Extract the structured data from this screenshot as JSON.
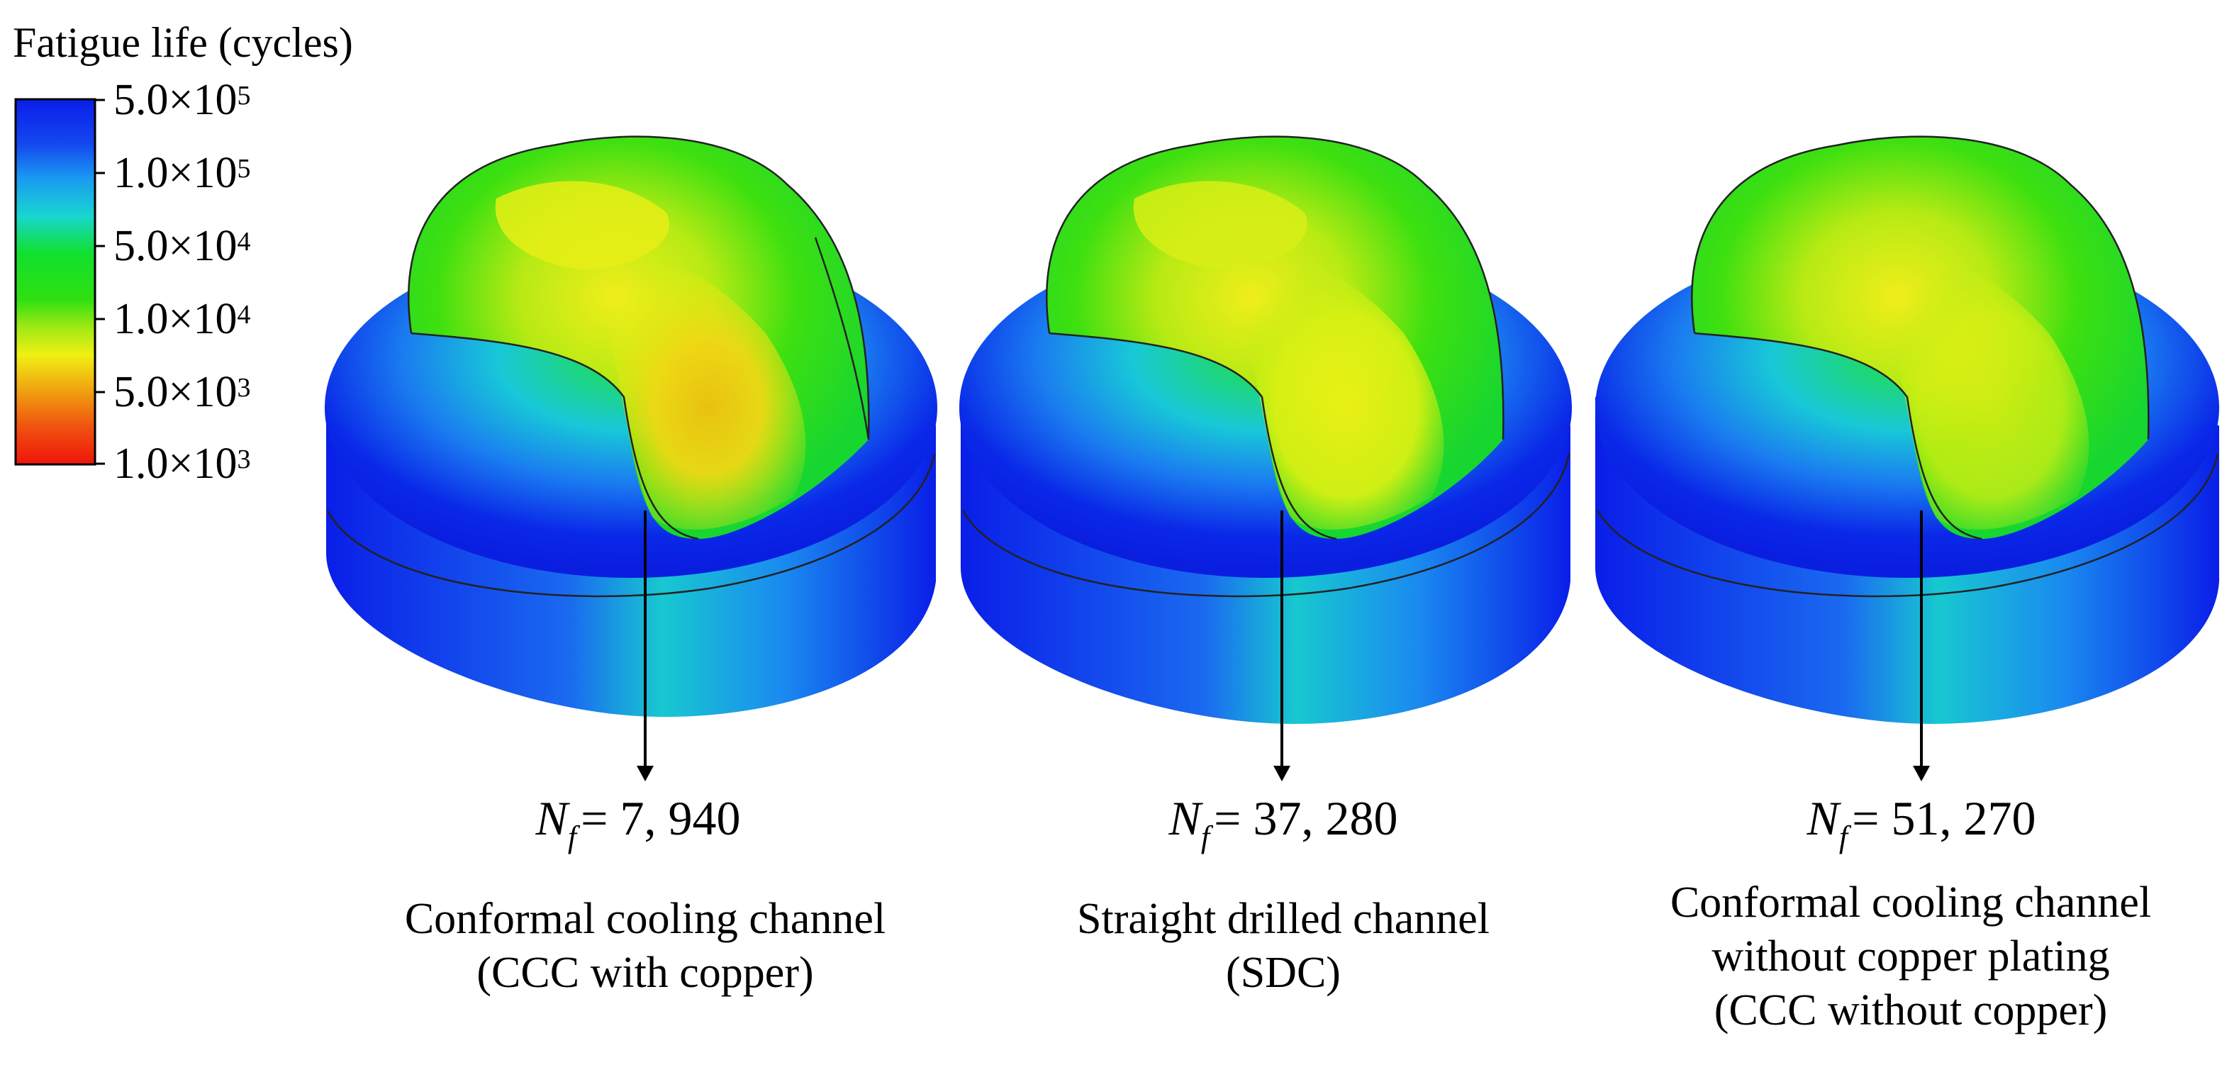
{
  "legend": {
    "title": "Fatigue life (cycles)",
    "ticks": [
      {
        "mantissa": "5.0×10",
        "exp": "5"
      },
      {
        "mantissa": "1.0×10",
        "exp": "5"
      },
      {
        "mantissa": "5.0×10",
        "exp": "4"
      },
      {
        "mantissa": "1.0×10",
        "exp": "4"
      },
      {
        "mantissa": "5.0×10",
        "exp": "3"
      },
      {
        "mantissa": "1.0×10",
        "exp": "3"
      }
    ],
    "colors": [
      "#0a1ee8",
      "#1a7cf0",
      "#18d6d6",
      "#10e010",
      "#7ae614",
      "#f0f014",
      "#f0a010",
      "#f01e0a"
    ]
  },
  "models": [
    {
      "nf_symbol": "N",
      "nf_sub": "f",
      "nf_value": "= 7, 940",
      "caption": [
        "Conformal cooling channel",
        "(CCC with copper)"
      ]
    },
    {
      "nf_symbol": "N",
      "nf_sub": "f",
      "nf_value": "= 37, 280",
      "caption": [
        "Straight drilled channel",
        "(SDC)"
      ]
    },
    {
      "nf_symbol": "N",
      "nf_sub": "f",
      "nf_value": "= 51, 270",
      "caption": [
        "Conformal cooling channel",
        "without copper plating",
        "(CCC without copper)"
      ]
    }
  ]
}
